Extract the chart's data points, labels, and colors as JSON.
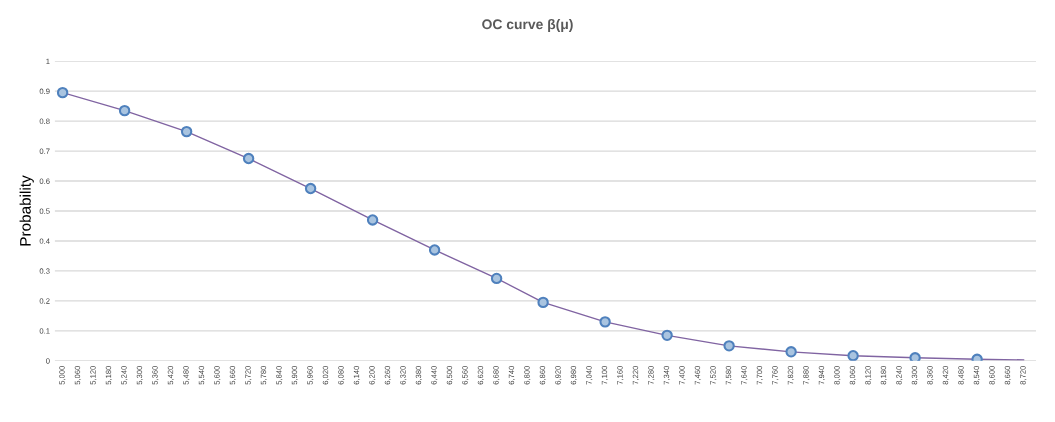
{
  "chart_data": {
    "type": "line",
    "title": "OC curve β(μ)",
    "ylabel": "Probability",
    "categories": [
      "5,000",
      "5,060",
      "5,120",
      "5,180",
      "5,240",
      "5,300",
      "5,360",
      "5,420",
      "5,480",
      "5,540",
      "5,600",
      "5,660",
      "5,720",
      "5,780",
      "5,840",
      "5,900",
      "5,960",
      "6,020",
      "6,080",
      "6,140",
      "6,200",
      "6,260",
      "6,320",
      "6,380",
      "6,440",
      "6,500",
      "6,560",
      "6,620",
      "6,680",
      "6,740",
      "6,800",
      "6,860",
      "6,920",
      "6,980",
      "7,040",
      "7,100",
      "7,160",
      "7,220",
      "7,280",
      "7,340",
      "7,400",
      "7,460",
      "7,520",
      "7,580",
      "7,640",
      "7,700",
      "7,760",
      "7,820",
      "7,880",
      "7,940",
      "8,000",
      "8,060",
      "8,120",
      "8,180",
      "8,240",
      "8,300",
      "8,360",
      "8,420",
      "8,480",
      "8,540",
      "8,600",
      "8,660",
      "8,720"
    ],
    "series": [
      {
        "color": "#8064a2",
        "marker": "none",
        "x": [
          "5,000",
          "5,240",
          "5,480",
          "5,720",
          "5,960",
          "6,200",
          "6,440",
          "6,680",
          "6,860",
          "7,100",
          "7,340",
          "7,580",
          "7,820",
          "8,060",
          "8,300",
          "8,540",
          "8,720"
        ],
        "values": [
          0.895,
          0.835,
          0.765,
          0.675,
          0.575,
          0.47,
          0.37,
          0.275,
          0.195,
          0.13,
          0.085,
          0.05,
          0.03,
          0.017,
          0.01,
          0.005,
          0.003
        ]
      },
      {
        "type": "scatter",
        "color": "#4f81bd",
        "marker": "circle",
        "x": [
          "5,000",
          "5,240",
          "5,480",
          "5,720",
          "5,960",
          "6,200",
          "6,440",
          "6,680",
          "6,860",
          "7,100",
          "7,340",
          "7,580",
          "7,820",
          "8,060",
          "8,300",
          "8,540"
        ],
        "values": [
          0.895,
          0.835,
          0.765,
          0.675,
          0.575,
          0.47,
          0.37,
          0.275,
          0.195,
          0.13,
          0.085,
          0.05,
          0.03,
          0.017,
          0.01,
          0.005
        ]
      }
    ],
    "ylim": [
      0,
      1
    ],
    "yticks": [
      0,
      0.1,
      0.2,
      0.3,
      0.4,
      0.5,
      0.6,
      0.7,
      0.8,
      0.9,
      1
    ],
    "grid": "y",
    "legend": false
  }
}
